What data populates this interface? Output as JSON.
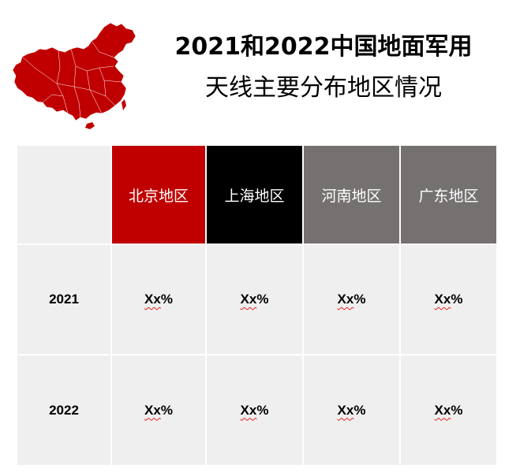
{
  "title": {
    "line1": "2021和2022中国地面军用",
    "line2": "天线主要分布地区情况"
  },
  "colors": {
    "map": "#c00000",
    "header_beijing": "#c00000",
    "header_shanghai": "#000000",
    "header_henan": "#767171",
    "header_guangdong": "#767171",
    "body_cell": "#efefef"
  },
  "table": {
    "headers": [
      "",
      "北京地区",
      "上海地区",
      "河南地区",
      "广东地区"
    ],
    "rows": [
      {
        "year": "2021",
        "cells": [
          {
            "x": "Xx",
            "pct": "%"
          },
          {
            "x": "Xx",
            "pct": "%"
          },
          {
            "x": "Xx",
            "pct": "%"
          },
          {
            "x": "Xx",
            "pct": "%"
          }
        ]
      },
      {
        "year": "2022",
        "cells": [
          {
            "x": "Xx",
            "pct": "%"
          },
          {
            "x": "Xx",
            "pct": "%"
          },
          {
            "x": "Xx",
            "pct": "%"
          },
          {
            "x": "Xx",
            "pct": "%"
          }
        ]
      }
    ]
  }
}
